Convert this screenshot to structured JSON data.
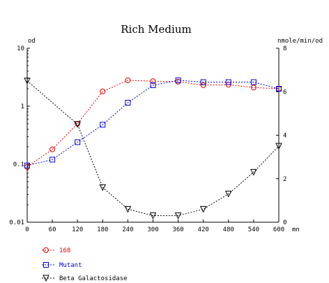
{
  "chart_data": {
    "type": "line",
    "title": "Rich Medium",
    "xlabel": "",
    "x_unit": "mn",
    "left_axis": {
      "unit": "od",
      "scale": "log",
      "ylim": [
        0.01,
        10
      ],
      "ticks": [
        0.01,
        0.1,
        1,
        10
      ],
      "tick_labels": [
        "0.01",
        "0.1",
        "1",
        "10"
      ]
    },
    "right_axis": {
      "unit": "nmole/min/od",
      "scale": "linear",
      "ylim": [
        0,
        8
      ],
      "ticks": [
        0,
        2,
        4,
        6,
        8
      ],
      "tick_labels": [
        "0",
        "2",
        "4",
        "6",
        "8"
      ]
    },
    "x": [
      0,
      60,
      120,
      180,
      240,
      300,
      360,
      420,
      480,
      540,
      600
    ],
    "x_ticks": [
      0,
      60,
      120,
      180,
      240,
      300,
      360,
      420,
      480,
      540,
      600
    ],
    "x_tick_labels": [
      "0",
      "60",
      "120",
      "180",
      "240",
      "300",
      "360",
      "420",
      "480",
      "540",
      "600"
    ],
    "grid": false,
    "legend_position": "bottom-left",
    "series": [
      {
        "name": "168",
        "axis": "left",
        "marker": "circle",
        "color": "#e00000",
        "values": [
          0.09,
          0.18,
          0.5,
          1.8,
          2.8,
          2.7,
          2.65,
          2.3,
          2.35,
          2.1,
          2.0
        ]
      },
      {
        "name": "Mutant",
        "axis": "left",
        "marker": "square",
        "color": "#0000d0",
        "values": [
          0.095,
          0.12,
          0.24,
          0.48,
          1.15,
          2.3,
          2.8,
          2.6,
          2.6,
          2.6,
          2.0
        ]
      },
      {
        "name": "Beta Galactosidase",
        "axis": "right",
        "marker": "triangle-down",
        "color": "#000000",
        "values": [
          6.5,
          null,
          4.5,
          1.6,
          0.6,
          0.3,
          0.3,
          0.6,
          1.3,
          2.3,
          3.5
        ]
      }
    ]
  }
}
